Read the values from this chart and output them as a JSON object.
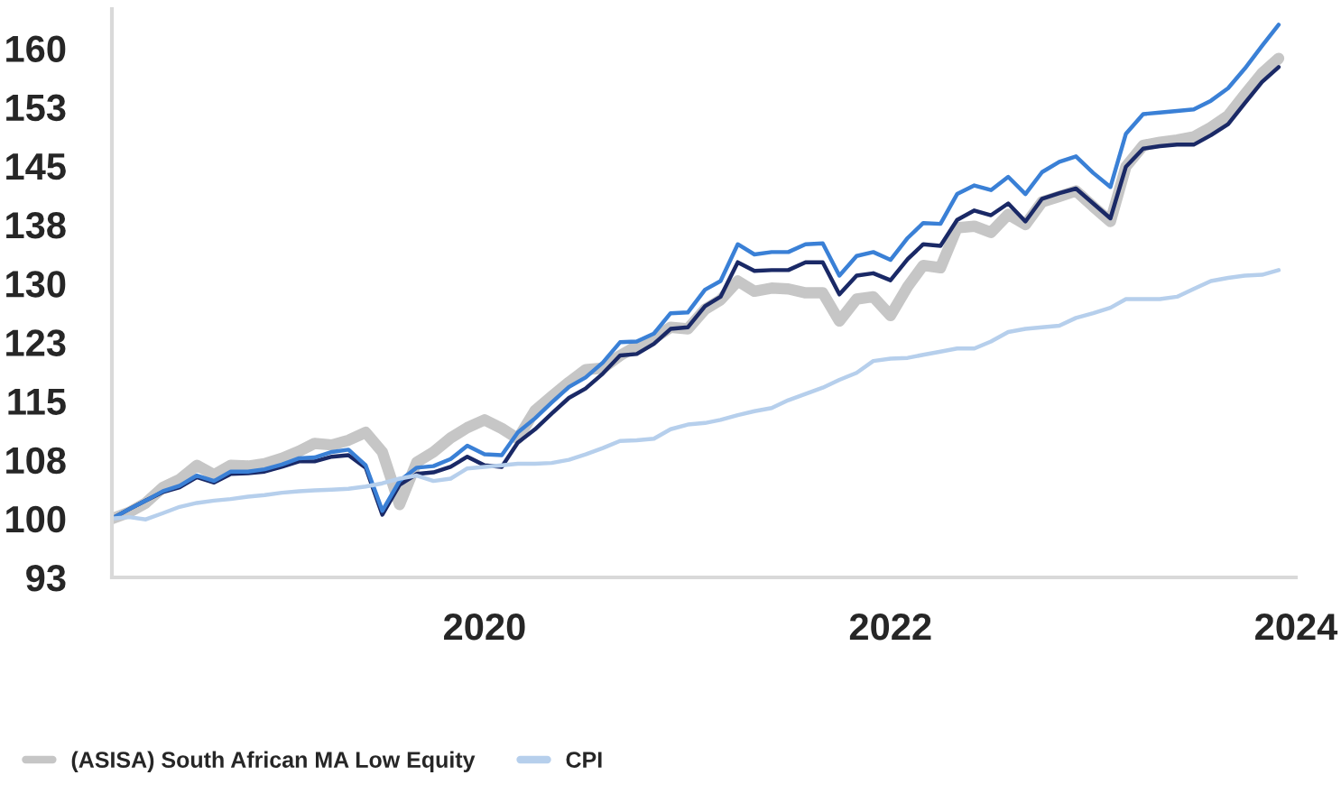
{
  "chart_data": {
    "type": "line",
    "x": [
      "2018-03",
      "2018-04",
      "2018-05",
      "2018-06",
      "2018-07",
      "2018-08",
      "2018-09",
      "2018-10",
      "2018-11",
      "2018-12",
      "2019-01",
      "2019-02",
      "2019-03",
      "2019-04",
      "2019-05",
      "2019-06",
      "2019-07",
      "2019-08",
      "2019-09",
      "2019-10",
      "2019-11",
      "2019-12",
      "2020-01",
      "2020-02",
      "2020-03",
      "2020-04",
      "2020-05",
      "2020-06",
      "2020-07",
      "2020-08",
      "2020-09",
      "2020-10",
      "2020-11",
      "2020-12",
      "2021-01",
      "2021-02",
      "2021-03",
      "2021-04",
      "2021-05",
      "2021-06",
      "2021-07",
      "2021-08",
      "2021-09",
      "2021-10",
      "2021-11",
      "2021-12",
      "2022-01",
      "2022-02",
      "2022-03",
      "2022-04",
      "2022-05",
      "2022-06",
      "2022-07",
      "2022-08",
      "2022-09",
      "2022-10",
      "2022-11",
      "2022-12",
      "2023-01",
      "2023-02",
      "2023-03",
      "2023-04",
      "2023-05",
      "2023-06",
      "2023-07",
      "2023-08",
      "2023-09",
      "2023-10",
      "2023-11",
      "2023-12"
    ],
    "series": [
      {
        "color": "#c6c6c6",
        "name": "(ASISA) South African MA Low Equity",
        "values": [
          100,
          100.8,
          102.0,
          104.0,
          105.0,
          106.8,
          105.6,
          106.8,
          106.7,
          107.0,
          107.7,
          108.6,
          109.6,
          109.4,
          110.0,
          111.0,
          108.5,
          101.8,
          107.2,
          108.5,
          110.3,
          111.6,
          112.6,
          111.5,
          110.2,
          113.8,
          115.6,
          117.4,
          119.0,
          119.2,
          120.8,
          122.0,
          123.0,
          124.4,
          124.2,
          126.7,
          127.9,
          130.3,
          129.0,
          129.4,
          129.3,
          128.8,
          128.8,
          125.2,
          128.0,
          128.3,
          125.9,
          129.6,
          132.3,
          132.0,
          137.1,
          137.3,
          136.5,
          138.8,
          137.5,
          140.4,
          141.1,
          141.8,
          139.8,
          137.9,
          144.9,
          147.6,
          148.0,
          148.3,
          148.7,
          149.9,
          151.4,
          154.1,
          156.8,
          158.7
        ]
      },
      {
        "color": "#1a2966",
        "values": [
          100,
          101.2,
          102.3,
          103.4,
          104.0,
          105.3,
          104.6,
          105.7,
          105.8,
          106.0,
          106.6,
          107.3,
          107.3,
          107.9,
          108.1,
          106.5,
          100.5,
          104.3,
          105.7,
          105.9,
          106.6,
          107.9,
          106.8,
          106.6,
          109.7,
          111.4,
          113.4,
          115.4,
          116.6,
          118.5,
          120.8,
          121.0,
          122.3,
          124.2,
          124.4,
          127.1,
          128.3,
          132.7,
          131.6,
          131.7,
          131.7,
          132.7,
          132.7,
          128.6,
          131.0,
          131.3,
          130.4,
          133.1,
          135.0,
          134.8,
          138.1,
          139.3,
          138.7,
          140.2,
          137.9,
          140.8,
          141.5,
          142.1,
          140.2,
          138.3,
          144.9,
          147.2,
          147.5,
          147.7,
          147.7,
          148.9,
          150.3,
          153.0,
          155.7,
          157.6
        ]
      },
      {
        "color": "#3a80d6",
        "values": [
          100,
          101.2,
          102.3,
          103.5,
          104.2,
          105.5,
          104.8,
          106.0,
          106.0,
          106.3,
          106.9,
          107.7,
          107.8,
          108.5,
          108.8,
          106.8,
          101.0,
          104.8,
          106.5,
          106.7,
          107.6,
          109.3,
          108.2,
          108.1,
          111.0,
          112.8,
          114.8,
          116.8,
          118.0,
          119.9,
          122.5,
          122.6,
          123.6,
          126.2,
          126.3,
          129.2,
          130.3,
          135.0,
          133.7,
          134.0,
          134.0,
          135.0,
          135.1,
          131.0,
          133.5,
          134.0,
          133.0,
          135.8,
          137.7,
          137.6,
          141.4,
          142.5,
          141.9,
          143.6,
          141.4,
          144.2,
          145.5,
          146.2,
          144.1,
          142.3,
          149.1,
          151.6,
          151.8,
          152.0,
          152.2,
          153.3,
          154.9,
          157.4,
          160.3,
          163.0
        ]
      },
      {
        "color": "#b6cfec",
        "name": "CPI",
        "values": [
          100,
          100.2,
          99.9,
          100.7,
          101.5,
          102.0,
          102.3,
          102.5,
          102.8,
          103.0,
          103.3,
          103.5,
          103.6,
          103.7,
          103.8,
          104.1,
          104.5,
          105.1,
          105.5,
          104.8,
          105.1,
          106.4,
          106.6,
          106.8,
          107.0,
          107.0,
          107.1,
          107.5,
          108.2,
          109.0,
          109.9,
          110.0,
          110.2,
          111.4,
          112.0,
          112.2,
          112.6,
          113.2,
          113.7,
          114.1,
          115.1,
          115.9,
          116.7,
          117.7,
          118.6,
          120.1,
          120.4,
          120.5,
          120.9,
          121.3,
          121.7,
          121.7,
          122.6,
          123.8,
          124.2,
          124.4,
          124.6,
          125.6,
          126.2,
          126.9,
          128.0,
          128.0,
          128.0,
          128.3,
          129.3,
          130.3,
          130.7,
          131.0,
          131.1,
          131.7
        ]
      }
    ],
    "xlim": [
      "2018-03",
      "2024-01"
    ],
    "xticks": [
      {
        "value": "2020-01",
        "label": "2020"
      },
      {
        "value": "2022-01",
        "label": "2022"
      },
      {
        "value": "2024-01",
        "label": "2024"
      }
    ],
    "ylim": [
      92.5,
      165
    ],
    "yticks": [
      {
        "value": 92.5,
        "label": "93"
      },
      100,
      {
        "value": 107.5,
        "label": "108"
      },
      115,
      {
        "value": 122.5,
        "label": "123"
      },
      130,
      {
        "value": 137.5,
        "label": "138"
      },
      145,
      {
        "value": 152.5,
        "label": "153"
      },
      160
    ],
    "grid": false,
    "legend": "bottom",
    "marker": "none",
    "line_style": "solid"
  }
}
